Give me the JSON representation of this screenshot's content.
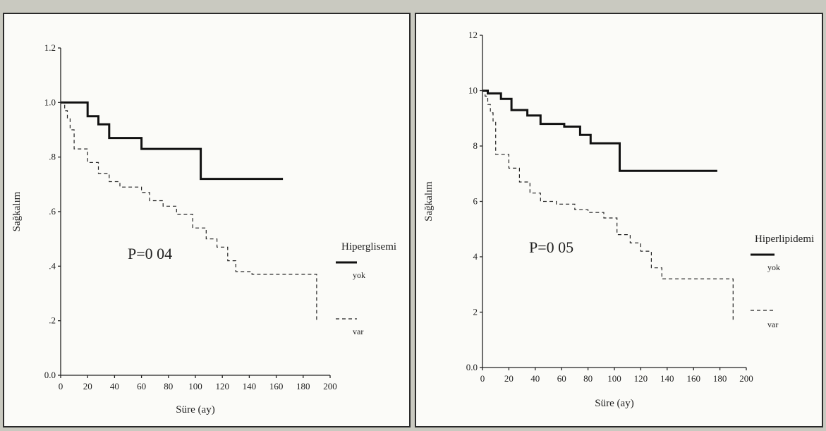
{
  "chart_data": [
    {
      "type": "line",
      "step": true,
      "annotation": "P=0 04",
      "xlabel": "Süre (ay)",
      "ylabel": "Sağkalım",
      "xlim": [
        0,
        200
      ],
      "ylim": [
        0,
        1.2
      ],
      "xticks": [
        0,
        20,
        40,
        60,
        80,
        100,
        120,
        140,
        160,
        180,
        200
      ],
      "xtick_labels": [
        "0",
        "20",
        "40",
        "60",
        "80",
        "100",
        "120",
        "140",
        "160",
        "180",
        "200"
      ],
      "yticks": [
        0,
        0.2,
        0.4,
        0.6,
        0.8,
        1.0,
        1.2
      ],
      "ytick_labels": [
        "0.0",
        ".2",
        ".4",
        ".6",
        ".8",
        "1.0",
        "1.2"
      ],
      "legend_title": "Hiperglisemi",
      "legend_position": "right",
      "series": [
        {
          "name": "yok",
          "style": "solid",
          "x": [
            0,
            20,
            20,
            28,
            28,
            36,
            36,
            44,
            44,
            60,
            60,
            66,
            66,
            104,
            104,
            165
          ],
          "y": [
            1.0,
            1.0,
            0.95,
            0.95,
            0.92,
            0.92,
            0.87,
            0.87,
            0.87,
            0.87,
            0.83,
            0.83,
            0.83,
            0.83,
            0.72,
            0.72
          ]
        },
        {
          "name": "var",
          "style": "dashed",
          "x": [
            0,
            3,
            3,
            5,
            5,
            7,
            7,
            10,
            10,
            20,
            20,
            28,
            28,
            36,
            36,
            44,
            44,
            60,
            60,
            66,
            66,
            76,
            76,
            86,
            86,
            98,
            98,
            108,
            108,
            116,
            116,
            124,
            124,
            130,
            130,
            142,
            142,
            190,
            190
          ],
          "y": [
            1.0,
            1.0,
            0.97,
            0.97,
            0.94,
            0.94,
            0.9,
            0.9,
            0.83,
            0.83,
            0.78,
            0.78,
            0.74,
            0.74,
            0.71,
            0.71,
            0.69,
            0.69,
            0.67,
            0.67,
            0.64,
            0.64,
            0.62,
            0.62,
            0.59,
            0.59,
            0.54,
            0.54,
            0.5,
            0.5,
            0.47,
            0.47,
            0.42,
            0.42,
            0.38,
            0.38,
            0.37,
            0.37,
            0.2
          ]
        }
      ]
    },
    {
      "type": "line",
      "step": true,
      "annotation": "P=0 05",
      "xlabel": "Süre (ay)",
      "ylabel": "Sağkalım",
      "xlim": [
        0,
        200
      ],
      "ylim": [
        0,
        12
      ],
      "xticks": [
        0,
        20,
        40,
        60,
        80,
        100,
        120,
        140,
        160,
        180,
        200
      ],
      "xtick_labels": [
        "0",
        "20",
        "40",
        "60",
        "80",
        "100",
        "120",
        "140",
        "160",
        "180",
        "200"
      ],
      "yticks": [
        0,
        2,
        4,
        6,
        8,
        10,
        12
      ],
      "ytick_labels": [
        "0.0",
        "2",
        "4",
        "6",
        "8",
        "10",
        "12"
      ],
      "legend_title": "Hiperlipidemi",
      "legend_position": "right",
      "series": [
        {
          "name": "yok",
          "style": "solid",
          "x": [
            0,
            4,
            4,
            14,
            14,
            22,
            22,
            34,
            34,
            44,
            44,
            62,
            62,
            74,
            74,
            82,
            82,
            104,
            104,
            178
          ],
          "y": [
            10.0,
            10.0,
            9.9,
            9.9,
            9.7,
            9.7,
            9.3,
            9.3,
            9.1,
            9.1,
            8.8,
            8.8,
            8.7,
            8.7,
            8.4,
            8.4,
            8.1,
            8.1,
            7.1,
            7.1
          ]
        },
        {
          "name": "var",
          "style": "dashed",
          "x": [
            0,
            2,
            2,
            4,
            4,
            6,
            6,
            8,
            8,
            10,
            10,
            20,
            20,
            28,
            28,
            36,
            36,
            44,
            44,
            56,
            56,
            70,
            70,
            80,
            80,
            92,
            92,
            102,
            102,
            112,
            112,
            120,
            120,
            128,
            128,
            136,
            136,
            146,
            146,
            190,
            190
          ],
          "y": [
            10.0,
            10.0,
            9.8,
            9.8,
            9.5,
            9.5,
            9.2,
            9.2,
            8.9,
            8.9,
            7.7,
            7.7,
            7.2,
            7.2,
            6.7,
            6.7,
            6.3,
            6.3,
            6.0,
            6.0,
            5.9,
            5.9,
            5.7,
            5.7,
            5.6,
            5.6,
            5.4,
            5.4,
            4.8,
            4.8,
            4.5,
            4.5,
            4.2,
            4.2,
            3.6,
            3.6,
            3.2,
            3.2,
            3.2,
            3.2,
            1.7
          ]
        }
      ]
    }
  ]
}
